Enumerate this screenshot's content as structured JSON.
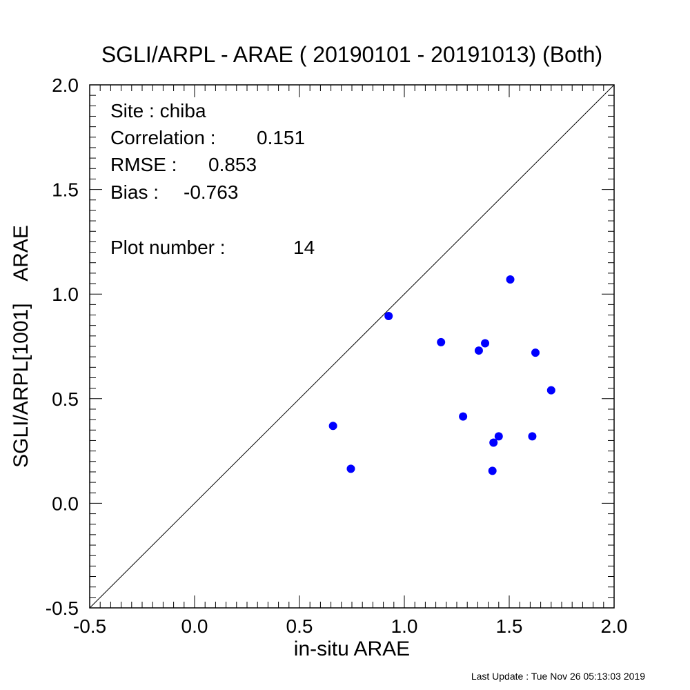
{
  "chart_data": {
    "type": "scatter",
    "title": "SGLI/ARPL - ARAE ( 20190101 - 20191013) (Both)",
    "xlabel": "in-situ ARAE",
    "ylabel": "SGLI/ARPL[1001]    ARAE",
    "xlim": [
      -0.5,
      2.0
    ],
    "ylim": [
      -0.5,
      2.0
    ],
    "x_ticks": [
      "-0.5",
      "0.0",
      "0.5",
      "1.0",
      "1.5",
      "2.0"
    ],
    "y_ticks": [
      "-0.5",
      "0.0",
      "0.5",
      "1.0",
      "1.5",
      "2.0"
    ],
    "reference_line": "1:1",
    "grid": false,
    "point_color": "#0000ff",
    "points": [
      {
        "x": 0.66,
        "y": 0.37
      },
      {
        "x": 0.745,
        "y": 0.165
      },
      {
        "x": 0.925,
        "y": 0.895
      },
      {
        "x": 1.175,
        "y": 0.77
      },
      {
        "x": 1.28,
        "y": 0.415
      },
      {
        "x": 1.355,
        "y": 0.73
      },
      {
        "x": 1.385,
        "y": 0.765
      },
      {
        "x": 1.42,
        "y": 0.155
      },
      {
        "x": 1.425,
        "y": 0.29
      },
      {
        "x": 1.45,
        "y": 0.32
      },
      {
        "x": 1.505,
        "y": 1.07
      },
      {
        "x": 1.61,
        "y": 0.32
      },
      {
        "x": 1.625,
        "y": 0.72
      },
      {
        "x": 1.7,
        "y": 0.54
      }
    ]
  },
  "stats": {
    "site": "Site : chiba",
    "correlation_label": "Correlation :",
    "correlation_value": "0.151",
    "rmse_label": "RMSE :",
    "rmse_value": "0.853",
    "bias_label": "Bias :",
    "bias_value": "-0.763",
    "plot_number_label": "Plot number :",
    "plot_number_value": "14"
  },
  "footer": "Last Update : Tue Nov 26 05:13:03 2019"
}
